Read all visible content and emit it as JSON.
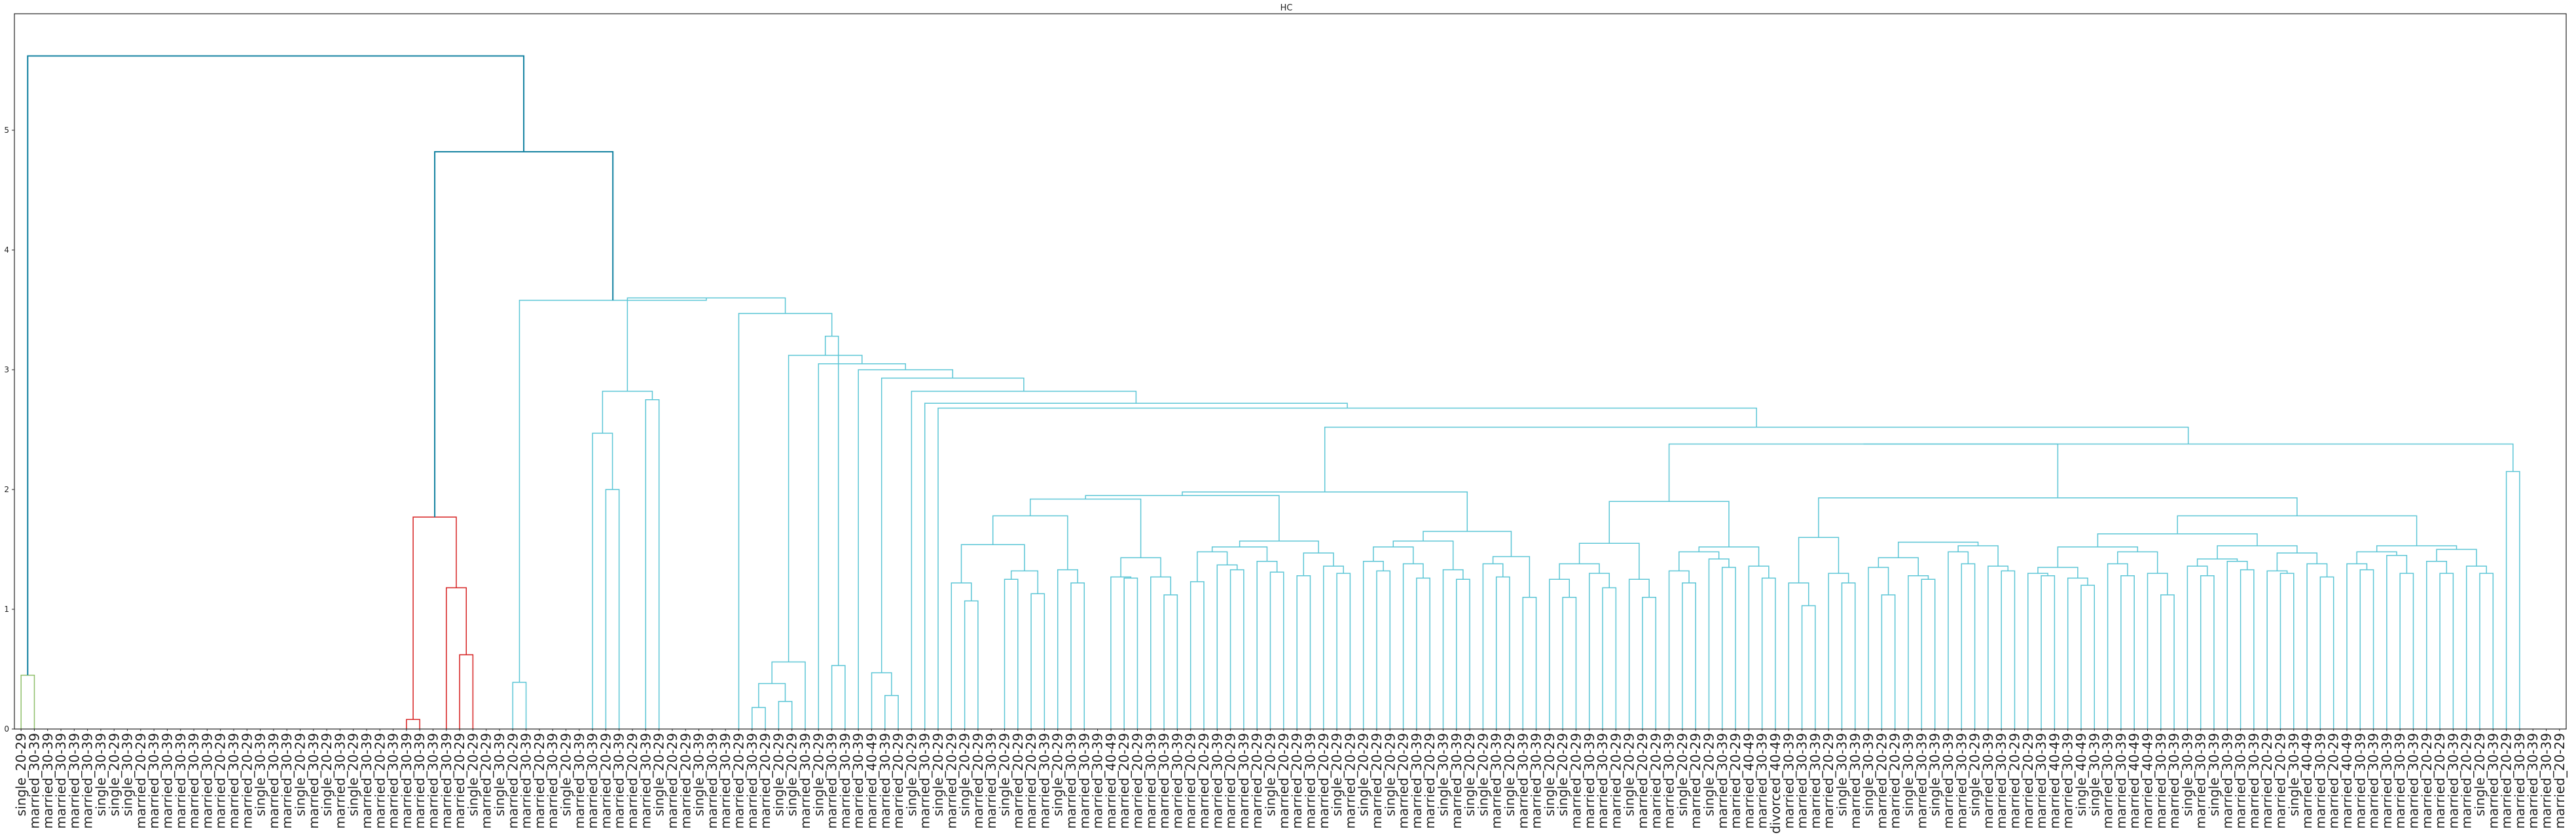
{
  "chart_data": {
    "type": "dendrogram",
    "title": "HC",
    "xlabel": "",
    "ylabel": "",
    "ylim": [
      0,
      6
    ],
    "yticks": [
      "0",
      "1",
      "2",
      "3",
      "4",
      "5"
    ],
    "grid": false,
    "colors": {
      "top": "#0f7f9f",
      "cluster_green": "#8fbf6a",
      "cluster_red": "#d62020",
      "cluster_cyan": "#5cc6d6"
    },
    "leaf_labels": [
      "single_20-29",
      "married_30-39",
      "married_30-39",
      "married_30-39",
      "married_30-39",
      "married_30-39",
      "single_30-39",
      "single_20-29",
      "single_30-39",
      "married_20-29",
      "married_30-39",
      "married_30-39",
      "married_30-39",
      "married_30-39",
      "married_30-39",
      "married_20-29",
      "married_30-39",
      "married_20-29",
      "single_30-39",
      "married_30-39",
      "married_30-39",
      "single_20-29",
      "married_30-39",
      "single_20-29",
      "married_30-39",
      "single_20-29",
      "married_30-39",
      "married_20-29",
      "married_30-39",
      "married_30-39",
      "married_30-39",
      "married_30-39",
      "married_30-39",
      "married_20-29",
      "single_20-29",
      "married_20-29",
      "single_30-39",
      "married_20-29",
      "married_30-39",
      "married_20-29",
      "married_30-39",
      "single_20-29",
      "married_30-39",
      "married_30-39",
      "married_20-29",
      "married_30-39",
      "married_20-29",
      "married_30-39",
      "single_20-29",
      "married_20-29",
      "married_20-29",
      "single_30-39",
      "married_30-39",
      "married_30-39",
      "married_20-29",
      "married_30-39",
      "married_20-29",
      "single_20-29",
      "single_20-29",
      "married_30-39",
      "single_20-29",
      "married_30-39",
      "married_30-39",
      "married_30-39",
      "married_40-49",
      "married_30-39",
      "married_20-29",
      "single_20-29",
      "married_30-39",
      "single_20-29",
      "married_20-29",
      "single_20-29",
      "married_20-29",
      "married_30-39",
      "single_20-29",
      "married_20-29",
      "married_20-29",
      "married_30-39",
      "single_20-29",
      "married_30-39",
      "married_30-39",
      "married_30-39",
      "married_40-49",
      "married_20-29",
      "married_20-29",
      "married_30-39",
      "married_30-39",
      "married_30-39",
      "married_20-29",
      "married_20-29",
      "married_30-39",
      "married_20-29",
      "married_30-39",
      "married_20-29",
      "single_20-29",
      "married_20-29",
      "married_20-29",
      "married_30-39",
      "married_20-29",
      "single_20-29",
      "married_20-29",
      "single_20-29",
      "married_20-29",
      "single_20-29",
      "married_20-29",
      "married_30-39",
      "married_20-29",
      "single_30-39",
      "married_30-39",
      "single_20-29",
      "single_20-29",
      "married_30-39",
      "single_20-29",
      "married_30-39",
      "married_30-39",
      "single_20-29",
      "single_20-29",
      "married_20-29",
      "married_30-39",
      "married_30-39",
      "married_20-29",
      "single_20-29",
      "married_20-29",
      "married_20-29",
      "married_30-39",
      "single_20-29",
      "married_20-29",
      "single_20-29",
      "married_30-39",
      "married_20-29",
      "married_40-49",
      "married_30-39",
      "divorced_40-49",
      "married_30-39",
      "married_30-39",
      "married_30-39",
      "married_20-29",
      "single_30-39",
      "married_30-39",
      "single_30-39",
      "married_20-29",
      "married_20-29",
      "single_30-39",
      "married_30-39",
      "single_30-39",
      "married_30-39",
      "married_30-39",
      "single_20-29",
      "married_30-39",
      "married_30-39",
      "married_20-29",
      "married_20-29",
      "married_30-39",
      "married_40-49",
      "married_30-39",
      "single_40-49",
      "single_30-39",
      "married_30-39",
      "married_30-39",
      "married_40-49",
      "married_40-49",
      "married_30-39",
      "married_30-39",
      "single_30-39",
      "married_30-39",
      "single_30-39",
      "married_30-39",
      "married_30-39",
      "married_30-39",
      "married_20-29",
      "married_20-29",
      "single_30-39",
      "married_40-49",
      "married_30-39",
      "married_20-29",
      "married_40-49",
      "married_30-39",
      "married_30-39",
      "married_30-39",
      "married_30-39",
      "married_30-39",
      "married_20-29",
      "married_20-29",
      "married_30-39",
      "married_20-29",
      "single_20-29",
      "married_30-39",
      "married_20-29",
      "married_30-39",
      "married_30-39",
      "married_30-39",
      "married_20-29"
    ],
    "merges": [
      {
        "l": 1,
        "r": 0,
        "h": 0.45,
        "c": "cluster_green"
      },
      {
        "l": 29,
        "r": 30,
        "h": 0.08,
        "c": "cluster_red"
      },
      {
        "l": 33,
        "r": 34,
        "h": 0.62,
        "c": "cluster_red"
      },
      {
        "l": 32,
        "r": -3,
        "h": 1.18,
        "c": "cluster_red"
      },
      {
        "l": -2,
        "r": -4,
        "h": 1.77,
        "c": "cluster_red"
      },
      {
        "l": 37,
        "r": 38,
        "h": 0.39,
        "c": "cluster_cyan"
      },
      {
        "l": 44,
        "r": 45,
        "h": 2.0,
        "c": "cluster_cyan"
      },
      {
        "l": 43,
        "r": -7,
        "h": 2.47,
        "c": "cluster_cyan"
      },
      {
        "l": 47,
        "r": 48,
        "h": 2.75,
        "c": "cluster_cyan"
      },
      {
        "l": -8,
        "r": -9,
        "h": 2.82,
        "c": "cluster_cyan"
      },
      {
        "l": 55,
        "r": 56,
        "h": 0.18,
        "c": "cluster_cyan"
      },
      {
        "l": 57,
        "r": 58,
        "h": 0.23,
        "c": "cluster_cyan"
      },
      {
        "l": -11,
        "r": -12,
        "h": 0.38,
        "c": "cluster_cyan"
      },
      {
        "l": -13,
        "r": 59,
        "h": 0.56,
        "c": "cluster_cyan"
      },
      {
        "l": 61,
        "r": 62,
        "h": 0.53,
        "c": "cluster_cyan"
      },
      {
        "l": 65,
        "r": 66,
        "h": 0.28,
        "c": "cluster_cyan"
      },
      {
        "l": 64,
        "r": -16,
        "h": 0.47,
        "c": "cluster_cyan"
      },
      {
        "l": 71,
        "r": 72,
        "h": 1.07,
        "c": "cluster_cyan"
      },
      {
        "l": 70,
        "r": -18,
        "h": 1.22,
        "c": "cluster_cyan"
      },
      {
        "l": 74,
        "r": 75,
        "h": 1.25,
        "c": "cluster_cyan"
      },
      {
        "l": 76,
        "r": 77,
        "h": 1.13,
        "c": "cluster_cyan"
      },
      {
        "l": -20,
        "r": -21,
        "h": 1.32,
        "c": "cluster_cyan"
      },
      {
        "l": -19,
        "r": -22,
        "h": 1.54,
        "c": "cluster_cyan"
      },
      {
        "l": 79,
        "r": 80,
        "h": 1.22,
        "c": "cluster_cyan"
      },
      {
        "l": 78,
        "r": -24,
        "h": 1.33,
        "c": "cluster_cyan"
      },
      {
        "l": -23,
        "r": -25,
        "h": 1.78,
        "c": "cluster_cyan"
      },
      {
        "l": 83,
        "r": 84,
        "h": 1.26,
        "c": "cluster_cyan"
      },
      {
        "l": 82,
        "r": -27,
        "h": 1.27,
        "c": "cluster_cyan"
      },
      {
        "l": 86,
        "r": 87,
        "h": 1.12,
        "c": "cluster_cyan"
      },
      {
        "l": 85,
        "r": -29,
        "h": 1.27,
        "c": "cluster_cyan"
      },
      {
        "l": -28,
        "r": -30,
        "h": 1.43,
        "c": "cluster_cyan"
      },
      {
        "l": -26,
        "r": -31,
        "h": 1.92,
        "c": "cluster_cyan"
      },
      {
        "l": 88,
        "r": 89,
        "h": 1.23,
        "c": "cluster_cyan"
      },
      {
        "l": 91,
        "r": 92,
        "h": 1.33,
        "c": "cluster_cyan"
      },
      {
        "l": 90,
        "r": -34,
        "h": 1.37,
        "c": "cluster_cyan"
      },
      {
        "l": -33,
        "r": -35,
        "h": 1.48,
        "c": "cluster_cyan"
      },
      {
        "l": 94,
        "r": 95,
        "h": 1.31,
        "c": "cluster_cyan"
      },
      {
        "l": 93,
        "r": -37,
        "h": 1.4,
        "c": "cluster_cyan"
      },
      {
        "l": -36,
        "r": -38,
        "h": 1.52,
        "c": "cluster_cyan"
      },
      {
        "l": 96,
        "r": 97,
        "h": 1.28,
        "c": "cluster_cyan"
      },
      {
        "l": 99,
        "r": 100,
        "h": 1.3,
        "c": "cluster_cyan"
      },
      {
        "l": 98,
        "r": -41,
        "h": 1.36,
        "c": "cluster_cyan"
      },
      {
        "l": -40,
        "r": -42,
        "h": 1.47,
        "c": "cluster_cyan"
      },
      {
        "l": -39,
        "r": -43,
        "h": 1.57,
        "c": "cluster_cyan"
      },
      {
        "l": -32,
        "r": -44,
        "h": 1.95,
        "c": "cluster_cyan"
      },
      {
        "l": 102,
        "r": 103,
        "h": 1.32,
        "c": "cluster_cyan"
      },
      {
        "l": 101,
        "r": -46,
        "h": 1.4,
        "c": "cluster_cyan"
      },
      {
        "l": 105,
        "r": 106,
        "h": 1.26,
        "c": "cluster_cyan"
      },
      {
        "l": 104,
        "r": -48,
        "h": 1.38,
        "c": "cluster_cyan"
      },
      {
        "l": -47,
        "r": -49,
        "h": 1.52,
        "c": "cluster_cyan"
      },
      {
        "l": 108,
        "r": 109,
        "h": 1.25,
        "c": "cluster_cyan"
      },
      {
        "l": 107,
        "r": -51,
        "h": 1.33,
        "c": "cluster_cyan"
      },
      {
        "l": -50,
        "r": -52,
        "h": 1.57,
        "c": "cluster_cyan"
      },
      {
        "l": 111,
        "r": 112,
        "h": 1.27,
        "c": "cluster_cyan"
      },
      {
        "l": 110,
        "r": -54,
        "h": 1.38,
        "c": "cluster_cyan"
      },
      {
        "l": 113,
        "r": 114,
        "h": 1.1,
        "c": "cluster_cyan"
      },
      {
        "l": -55,
        "r": -56,
        "h": 1.44,
        "c": "cluster_cyan"
      },
      {
        "l": -53,
        "r": -57,
        "h": 1.65,
        "c": "cluster_cyan"
      },
      {
        "l": -45,
        "r": -58,
        "h": 1.98,
        "c": "cluster_cyan"
      },
      {
        "l": 116,
        "r": 117,
        "h": 1.1,
        "c": "cluster_cyan"
      },
      {
        "l": 115,
        "r": -60,
        "h": 1.25,
        "c": "cluster_cyan"
      },
      {
        "l": 119,
        "r": 120,
        "h": 1.18,
        "c": "cluster_cyan"
      },
      {
        "l": 118,
        "r": -62,
        "h": 1.3,
        "c": "cluster_cyan"
      },
      {
        "l": -61,
        "r": -63,
        "h": 1.38,
        "c": "cluster_cyan"
      },
      {
        "l": 122,
        "r": 123,
        "h": 1.1,
        "c": "cluster_cyan"
      },
      {
        "l": 121,
        "r": -65,
        "h": 1.25,
        "c": "cluster_cyan"
      },
      {
        "l": -64,
        "r": -66,
        "h": 1.55,
        "c": "cluster_cyan"
      },
      {
        "l": 125,
        "r": 126,
        "h": 1.22,
        "c": "cluster_cyan"
      },
      {
        "l": 124,
        "r": -68,
        "h": 1.32,
        "c": "cluster_cyan"
      },
      {
        "l": 128,
        "r": 129,
        "h": 1.35,
        "c": "cluster_cyan"
      },
      {
        "l": 127,
        "r": -70,
        "h": 1.42,
        "c": "cluster_cyan"
      },
      {
        "l": -69,
        "r": -71,
        "h": 1.48,
        "c": "cluster_cyan"
      },
      {
        "l": 131,
        "r": 132,
        "h": 1.26,
        "c": "cluster_cyan"
      },
      {
        "l": 130,
        "r": -73,
        "h": 1.36,
        "c": "cluster_cyan"
      },
      {
        "l": -72,
        "r": -74,
        "h": 1.52,
        "c": "cluster_cyan"
      },
      {
        "l": -67,
        "r": -75,
        "h": 1.9,
        "c": "cluster_cyan"
      },
      {
        "l": 134,
        "r": 135,
        "h": 1.03,
        "c": "cluster_cyan"
      },
      {
        "l": 133,
        "r": -77,
        "h": 1.22,
        "c": "cluster_cyan"
      },
      {
        "l": 137,
        "r": 138,
        "h": 1.22,
        "c": "cluster_cyan"
      },
      {
        "l": 136,
        "r": -79,
        "h": 1.3,
        "c": "cluster_cyan"
      },
      {
        "l": -78,
        "r": -80,
        "h": 1.6,
        "c": "cluster_cyan"
      },
      {
        "l": 140,
        "r": 141,
        "h": 1.12,
        "c": "cluster_cyan"
      },
      {
        "l": 139,
        "r": -82,
        "h": 1.35,
        "c": "cluster_cyan"
      },
      {
        "l": 143,
        "r": 144,
        "h": 1.25,
        "c": "cluster_cyan"
      },
      {
        "l": 142,
        "r": -84,
        "h": 1.28,
        "c": "cluster_cyan"
      },
      {
        "l": -83,
        "r": -85,
        "h": 1.43,
        "c": "cluster_cyan"
      },
      {
        "l": 146,
        "r": 147,
        "h": 1.38,
        "c": "cluster_cyan"
      },
      {
        "l": 145,
        "r": -87,
        "h": 1.48,
        "c": "cluster_cyan"
      },
      {
        "l": 149,
        "r": 150,
        "h": 1.32,
        "c": "cluster_cyan"
      },
      {
        "l": 148,
        "r": -89,
        "h": 1.36,
        "c": "cluster_cyan"
      },
      {
        "l": -88,
        "r": -90,
        "h": 1.53,
        "c": "cluster_cyan"
      },
      {
        "l": -86,
        "r": -91,
        "h": 1.56,
        "c": "cluster_cyan"
      },
      {
        "l": 152,
        "r": 153,
        "h": 1.28,
        "c": "cluster_cyan"
      },
      {
        "l": 151,
        "r": -93,
        "h": 1.3,
        "c": "cluster_cyan"
      },
      {
        "l": 155,
        "r": 156,
        "h": 1.2,
        "c": "cluster_cyan"
      },
      {
        "l": 154,
        "r": -95,
        "h": 1.26,
        "c": "cluster_cyan"
      },
      {
        "l": -94,
        "r": -96,
        "h": 1.35,
        "c": "cluster_cyan"
      },
      {
        "l": 158,
        "r": 159,
        "h": 1.28,
        "c": "cluster_cyan"
      },
      {
        "l": 157,
        "r": -98,
        "h": 1.38,
        "c": "cluster_cyan"
      },
      {
        "l": 161,
        "r": 162,
        "h": 1.12,
        "c": "cluster_cyan"
      },
      {
        "l": 160,
        "r": -100,
        "h": 1.3,
        "c": "cluster_cyan"
      },
      {
        "l": -99,
        "r": -101,
        "h": 1.48,
        "c": "cluster_cyan"
      },
      {
        "l": -97,
        "r": -102,
        "h": 1.52,
        "c": "cluster_cyan"
      },
      {
        "l": 164,
        "r": 165,
        "h": 1.28,
        "c": "cluster_cyan"
      },
      {
        "l": 163,
        "r": -104,
        "h": 1.36,
        "c": "cluster_cyan"
      },
      {
        "l": 167,
        "r": 168,
        "h": 1.33,
        "c": "cluster_cyan"
      },
      {
        "l": 166,
        "r": -106,
        "h": 1.4,
        "c": "cluster_cyan"
      },
      {
        "l": -105,
        "r": -107,
        "h": 1.42,
        "c": "cluster_cyan"
      },
      {
        "l": 170,
        "r": 171,
        "h": 1.3,
        "c": "cluster_cyan"
      },
      {
        "l": 169,
        "r": -109,
        "h": 1.32,
        "c": "cluster_cyan"
      },
      {
        "l": 173,
        "r": 174,
        "h": 1.27,
        "c": "cluster_cyan"
      },
      {
        "l": 172,
        "r": -111,
        "h": 1.38,
        "c": "cluster_cyan"
      },
      {
        "l": -110,
        "r": -112,
        "h": 1.47,
        "c": "cluster_cyan"
      },
      {
        "l": -108,
        "r": -113,
        "h": 1.53,
        "c": "cluster_cyan"
      },
      {
        "l": -103,
        "r": -114,
        "h": 1.63,
        "c": "cluster_cyan"
      },
      {
        "l": 176,
        "r": 177,
        "h": 1.33,
        "c": "cluster_cyan"
      },
      {
        "l": 175,
        "r": -116,
        "h": 1.38,
        "c": "cluster_cyan"
      },
      {
        "l": 179,
        "r": 180,
        "h": 1.3,
        "c": "cluster_cyan"
      },
      {
        "l": 178,
        "r": -118,
        "h": 1.45,
        "c": "cluster_cyan"
      },
      {
        "l": -117,
        "r": -119,
        "h": 1.48,
        "c": "cluster_cyan"
      },
      {
        "l": 182,
        "r": 183,
        "h": 1.3,
        "c": "cluster_cyan"
      },
      {
        "l": 181,
        "r": -121,
        "h": 1.4,
        "c": "cluster_cyan"
      },
      {
        "l": 185,
        "r": 186,
        "h": 1.3,
        "c": "cluster_cyan"
      },
      {
        "l": 184,
        "r": -123,
        "h": 1.36,
        "c": "cluster_cyan"
      },
      {
        "l": -122,
        "r": -124,
        "h": 1.5,
        "c": "cluster_cyan"
      },
      {
        "l": -120,
        "r": -125,
        "h": 1.53,
        "c": "cluster_cyan"
      },
      {
        "l": -115,
        "r": -126,
        "h": 1.78,
        "c": "cluster_cyan"
      },
      {
        "l": -81,
        "r": -127,
        "h": 1.93,
        "c": "cluster_cyan"
      },
      {
        "l": -76,
        "r": -128,
        "h": 2.38,
        "c": "cluster_cyan"
      },
      {
        "l": 187,
        "r": 188,
        "h": 2.15,
        "c": "cluster_cyan"
      },
      {
        "l": -129,
        "r": -130,
        "h": 2.38,
        "c": "cluster_cyan"
      },
      {
        "l": -59,
        "r": -131,
        "h": 2.52,
        "c": "cluster_cyan"
      },
      {
        "l": 69,
        "r": -132,
        "h": 2.68,
        "c": "cluster_cyan"
      },
      {
        "l": 68,
        "r": -133,
        "h": 2.72,
        "c": "cluster_cyan"
      },
      {
        "l": 67,
        "r": -134,
        "h": 2.82,
        "c": "cluster_cyan"
      },
      {
        "l": -17,
        "r": -135,
        "h": 2.93,
        "c": "cluster_cyan"
      },
      {
        "l": 63,
        "r": -136,
        "h": 3.0,
        "c": "cluster_cyan"
      },
      {
        "l": 60,
        "r": -137,
        "h": 3.05,
        "c": "cluster_cyan"
      },
      {
        "l": -14,
        "r": -138,
        "h": 3.12,
        "c": "cluster_cyan"
      },
      {
        "l": -15,
        "r": -139,
        "h": 3.28,
        "c": "cluster_cyan"
      },
      {
        "l": 54,
        "r": -140,
        "h": 3.47,
        "c": "cluster_cyan"
      },
      {
        "l": -10,
        "r": -141,
        "h": 3.6,
        "c": "cluster_cyan"
      },
      {
        "l": -6,
        "r": -142,
        "h": 3.58,
        "c": "cluster_cyan"
      },
      {
        "l": -5,
        "r": -143,
        "h": 4.82,
        "c": "top"
      },
      {
        "l": -1,
        "r": -144,
        "h": 5.62,
        "c": "top"
      }
    ]
  }
}
